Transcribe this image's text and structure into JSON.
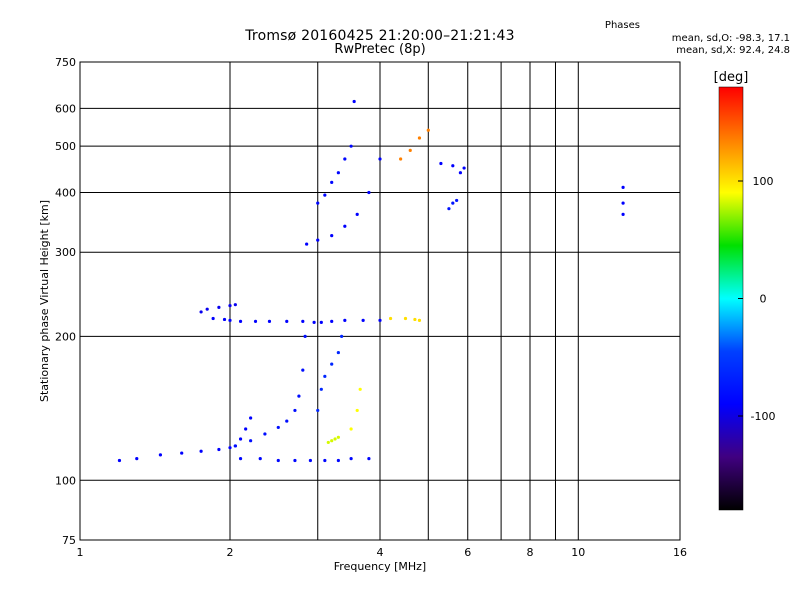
{
  "chart_data": {
    "type": "scatter",
    "title": "Tromsø 20160425 21:20:00–21:21:43",
    "subtitle": "RwPretec (8p)",
    "xlabel": "Frequency [MHz]",
    "ylabel": "Stationary phase Virtual Height [km]",
    "x_scale": "log",
    "y_scale": "log",
    "xlim": [
      1,
      16
    ],
    "ylim": [
      75,
      750
    ],
    "x_ticks": [
      1,
      2,
      4,
      6,
      8,
      10,
      16
    ],
    "x_minor_ticks": [
      3,
      5,
      7,
      9
    ],
    "y_ticks": [
      75,
      100,
      200,
      300,
      400,
      500,
      600,
      750
    ],
    "grid": true,
    "colorbar": {
      "label": "[deg]",
      "range": [
        -180,
        180
      ],
      "ticks": [
        100,
        0,
        -100
      ],
      "colors": [
        "#ff0000",
        "#ff8000",
        "#ffff00",
        "#00e000",
        "#00ffff",
        "#0040ff",
        "#0000ff",
        "#400080",
        "#000000"
      ]
    },
    "phases": {
      "heading": "Phases",
      "o_line": "mean, sd,O: -98.3, 17.1",
      "x_line": "mean, sd,X: 92.4, 24.8"
    },
    "traces": [
      {
        "x": [
          1.85,
          1.95,
          2.0,
          2.1,
          2.25,
          2.4,
          2.6,
          2.8,
          2.95,
          3.05,
          3.2,
          3.4,
          3.7,
          4.0
        ],
        "y": [
          218,
          217,
          216,
          215,
          215,
          215,
          215,
          215,
          214,
          214,
          215,
          216,
          216,
          216
        ],
        "phase": -110
      },
      {
        "x": [
          1.75,
          1.8,
          1.9,
          2.0,
          2.05
        ],
        "y": [
          225,
          228,
          230,
          232,
          233
        ],
        "phase": -115
      },
      {
        "x": [
          1.2,
          1.3,
          1.45,
          1.6,
          1.75,
          1.9,
          2.0,
          2.05,
          2.1,
          2.15,
          2.2
        ],
        "y": [
          110,
          111,
          113,
          114,
          115,
          116,
          117,
          118,
          122,
          128,
          135
        ],
        "phase": -110
      },
      {
        "x": [
          2.05,
          2.2,
          2.35,
          2.5,
          2.6,
          2.7,
          2.75,
          2.8,
          2.83
        ],
        "y": [
          118,
          121,
          125,
          129,
          133,
          140,
          150,
          170,
          200
        ],
        "phase": -100
      },
      {
        "x": [
          2.1,
          2.3,
          2.5,
          2.7,
          2.9,
          3.1,
          3.3,
          3.5,
          3.8
        ],
        "y": [
          111,
          111,
          110,
          110,
          110,
          110,
          110,
          111,
          111
        ],
        "phase": -105
      },
      {
        "x": [
          3.0,
          3.05,
          3.1,
          3.2,
          3.3,
          3.35
        ],
        "y": [
          140,
          155,
          165,
          175,
          185,
          200
        ],
        "phase": -80
      },
      {
        "x": [
          2.85,
          3.0,
          3.2,
          3.4,
          3.6,
          3.8,
          4.0
        ],
        "y": [
          312,
          318,
          325,
          340,
          360,
          400,
          470
        ],
        "phase": -110
      },
      {
        "x": [
          3.0,
          3.1,
          3.2,
          3.3,
          3.4,
          3.5
        ],
        "y": [
          380,
          395,
          420,
          440,
          470,
          500
        ],
        "phase": -105
      },
      {
        "x": [
          4.2,
          4.5,
          4.7,
          4.8
        ],
        "y": [
          218,
          218,
          217,
          216
        ],
        "phase": 110
      },
      {
        "x": [
          3.5,
          3.6,
          3.65
        ],
        "y": [
          128,
          140,
          155
        ],
        "phase": 100
      },
      {
        "x": [
          3.15,
          3.2,
          3.25,
          3.3
        ],
        "y": [
          120,
          121,
          122,
          123
        ],
        "phase": 90
      },
      {
        "x": [
          4.4,
          4.6,
          4.8,
          5.0
        ],
        "y": [
          470,
          490,
          520,
          540
        ],
        "phase": 140
      },
      {
        "x": [
          5.3,
          5.6,
          5.8,
          5.9
        ],
        "y": [
          460,
          455,
          440,
          450
        ],
        "phase": -110
      },
      {
        "x": [
          5.5,
          5.6,
          5.7
        ],
        "y": [
          370,
          380,
          385
        ],
        "phase": -95
      },
      {
        "x": [
          3.55
        ],
        "y": [
          620
        ],
        "phase": -110
      },
      {
        "x": [
          12.3,
          12.3,
          12.3
        ],
        "y": [
          410,
          380,
          360
        ],
        "phase": -110
      }
    ]
  }
}
